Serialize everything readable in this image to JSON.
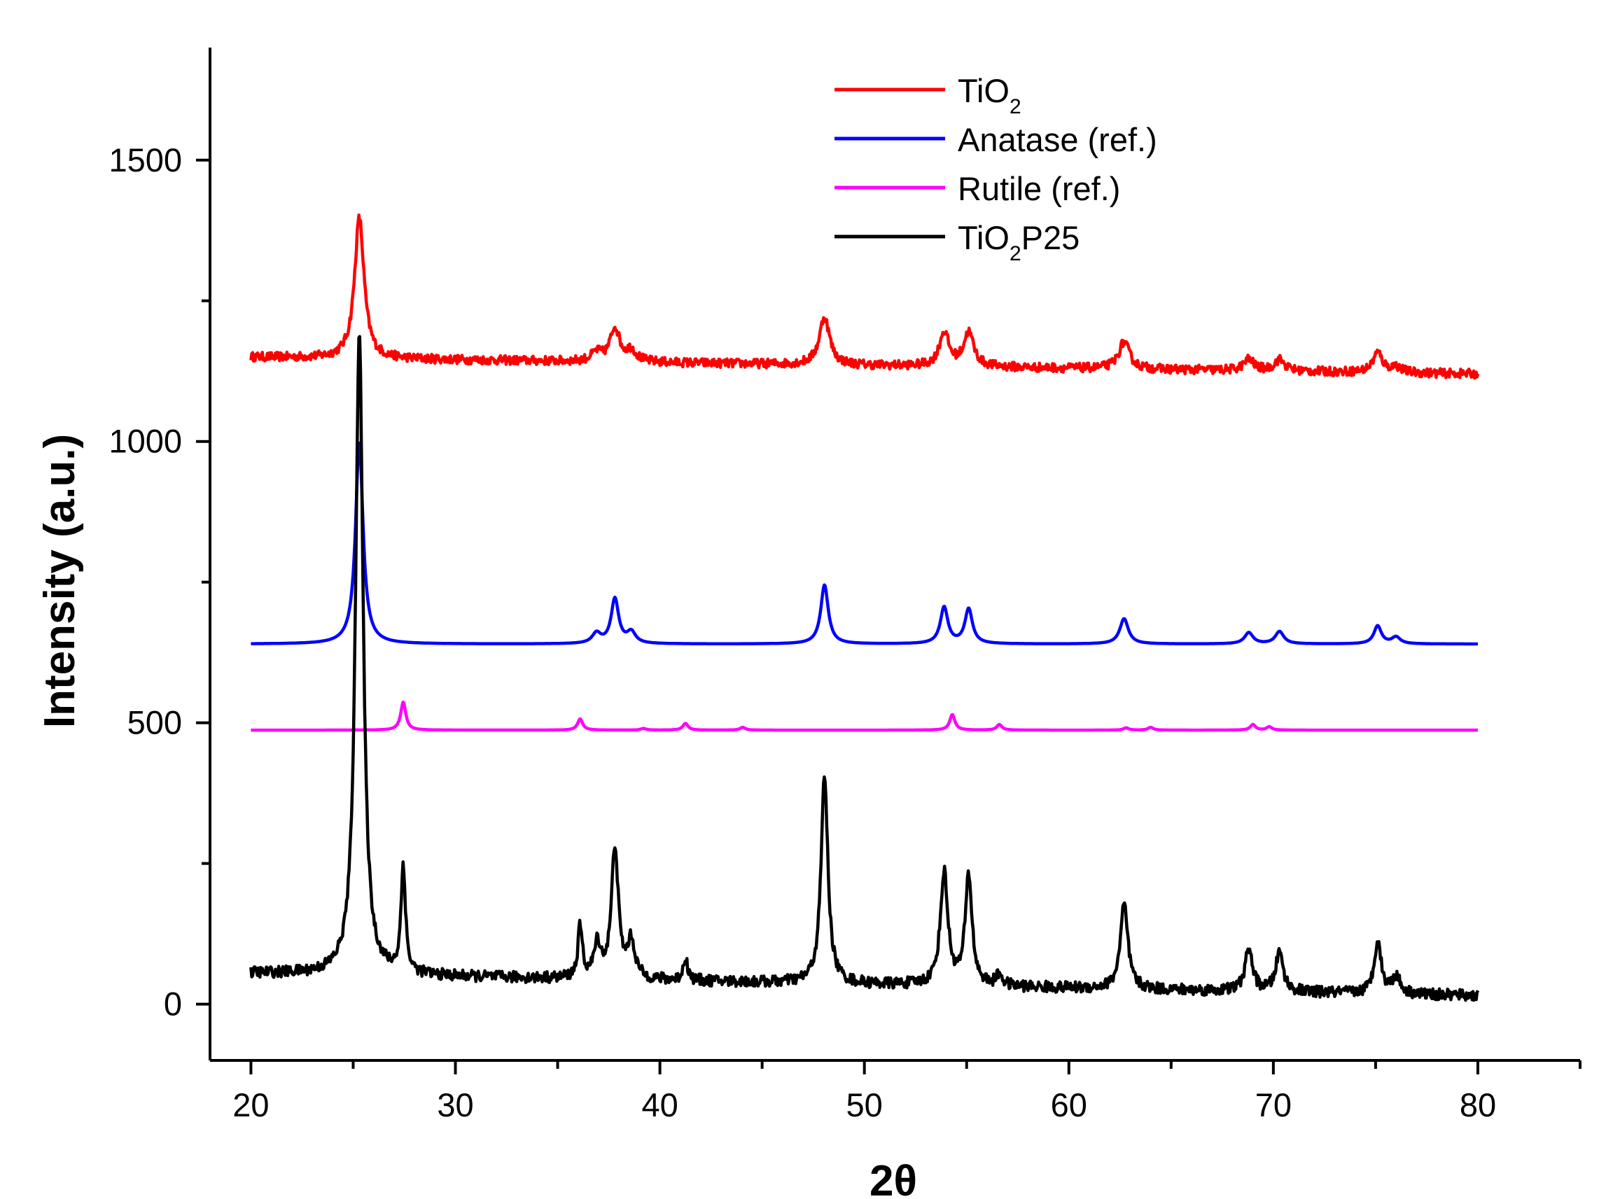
{
  "chart_data": {
    "type": "line",
    "title": "",
    "xlabel": "2θ",
    "ylabel": "Intensity (a.u.)",
    "xlim": [
      18,
      85
    ],
    "ylim": [
      -100,
      1700
    ],
    "xticks": [
      20,
      30,
      40,
      50,
      60,
      70,
      80
    ],
    "yticks": [
      0,
      500,
      1000,
      1500
    ],
    "grid": false,
    "legend_position": "top-center",
    "series": [
      {
        "name": "TiO2",
        "legend_main": "TiO",
        "legend_sub": "2",
        "legend_after": "",
        "color": "#ff0000",
        "baseline": 1150,
        "baseline_end": 1120,
        "noise": 8,
        "peaks": [
          [
            25.3,
            250,
            0.28
          ],
          [
            36.9,
            15,
            0.3
          ],
          [
            37.8,
            60,
            0.28
          ],
          [
            38.6,
            20,
            0.3
          ],
          [
            48.05,
            85,
            0.3
          ],
          [
            53.9,
            60,
            0.28
          ],
          [
            55.1,
            60,
            0.3
          ],
          [
            62.7,
            48,
            0.32
          ],
          [
            68.8,
            20,
            0.3
          ],
          [
            70.3,
            20,
            0.3
          ],
          [
            75.1,
            35,
            0.28
          ],
          [
            76.0,
            10,
            0.3
          ]
        ]
      },
      {
        "name": "Anatase (ref.)",
        "legend_main": "Anatase (ref.)",
        "legend_sub": "",
        "legend_after": "",
        "color": "#0000ff",
        "baseline": 640,
        "baseline_end": 640,
        "noise": 0,
        "peaks": [
          [
            25.3,
            360,
            0.22
          ],
          [
            36.9,
            18,
            0.25
          ],
          [
            37.8,
            80,
            0.22
          ],
          [
            38.6,
            20,
            0.25
          ],
          [
            48.05,
            105,
            0.22
          ],
          [
            53.9,
            65,
            0.22
          ],
          [
            55.1,
            62,
            0.22
          ],
          [
            62.7,
            45,
            0.25
          ],
          [
            68.8,
            20,
            0.25
          ],
          [
            70.3,
            22,
            0.25
          ],
          [
            75.1,
            32,
            0.22
          ],
          [
            76.0,
            12,
            0.25
          ]
        ]
      },
      {
        "name": "Rutile (ref.)",
        "legend_main": "Rutile (ref.)",
        "legend_sub": "",
        "legend_after": "",
        "color": "#ff00ff",
        "baseline": 487,
        "baseline_end": 487,
        "noise": 0,
        "peaks": [
          [
            27.45,
            50,
            0.15
          ],
          [
            36.1,
            20,
            0.15
          ],
          [
            39.2,
            3,
            0.15
          ],
          [
            41.25,
            12,
            0.15
          ],
          [
            44.05,
            5,
            0.15
          ],
          [
            54.3,
            28,
            0.15
          ],
          [
            56.6,
            10,
            0.15
          ],
          [
            62.8,
            4,
            0.15
          ],
          [
            64.0,
            5,
            0.15
          ],
          [
            69.0,
            10,
            0.15
          ],
          [
            69.8,
            6,
            0.15
          ]
        ]
      },
      {
        "name": "TiO2P25",
        "legend_main": "TiO",
        "legend_sub": "2",
        "legend_after": "P25",
        "color": "#000000",
        "baseline": 55,
        "baseline_end": 15,
        "noise": 10,
        "peaks": [
          [
            25.3,
            1150,
            0.22
          ],
          [
            27.45,
            190,
            0.13
          ],
          [
            36.1,
            90,
            0.13
          ],
          [
            36.95,
            60,
            0.2
          ],
          [
            37.8,
            235,
            0.2
          ],
          [
            38.6,
            65,
            0.22
          ],
          [
            41.25,
            40,
            0.13
          ],
          [
            48.05,
            370,
            0.2
          ],
          [
            53.9,
            200,
            0.22
          ],
          [
            55.1,
            195,
            0.2
          ],
          [
            56.6,
            20,
            0.18
          ],
          [
            62.7,
            150,
            0.22
          ],
          [
            68.8,
            75,
            0.22
          ],
          [
            70.3,
            70,
            0.22
          ],
          [
            75.1,
            95,
            0.2
          ],
          [
            76.0,
            30,
            0.25
          ]
        ]
      }
    ]
  }
}
